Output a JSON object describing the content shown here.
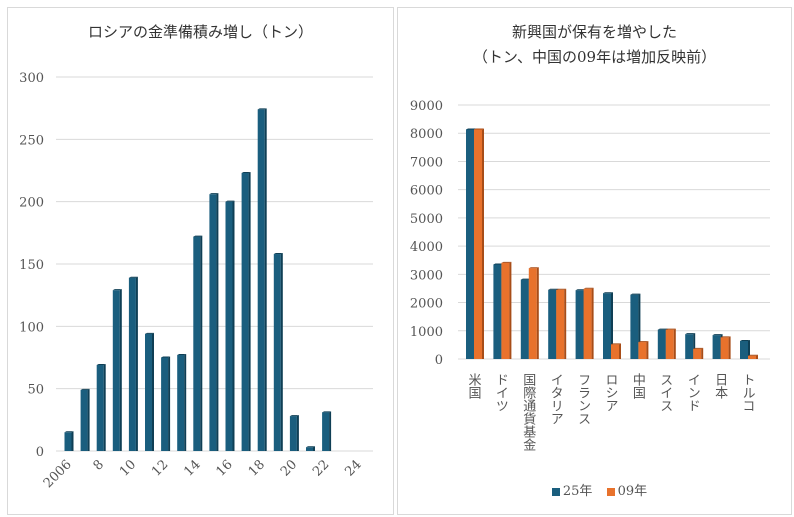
{
  "chart_data": [
    {
      "type": "bar",
      "title": "ロシアの金準備積み増し（トン）",
      "x": [
        2006,
        2007,
        2008,
        2009,
        2010,
        2011,
        2012,
        2013,
        2014,
        2015,
        2016,
        2017,
        2018,
        2019,
        2020,
        2021,
        2022
      ],
      "values": [
        15,
        49,
        69,
        129,
        139,
        94,
        75,
        77,
        172,
        206,
        200,
        223,
        274,
        158,
        28,
        3,
        31
      ],
      "xtick_labels": [
        "2006",
        "8",
        "10",
        "12",
        "14",
        "16",
        "18",
        "20",
        "22",
        "24"
      ],
      "xticks": [
        2006,
        2008,
        2010,
        2012,
        2014,
        2016,
        2018,
        2020,
        2022,
        2024
      ],
      "yticks": [
        0,
        50,
        100,
        150,
        200,
        250,
        300
      ],
      "ylim": [
        0,
        300
      ],
      "grid": true,
      "color": "#1a5e7e"
    },
    {
      "type": "bar",
      "title_lines": [
        "新興国が保有を増やした",
        "（トン、中国の09年は増加反映前）"
      ],
      "categories": [
        "米国",
        "ドイツ",
        "国際通貨基金",
        "イタリア",
        "フランス",
        "ロシア",
        "中国",
        "スイス",
        "インド",
        "日本",
        "トルコ"
      ],
      "series": [
        {
          "name": "25年",
          "color": "#1a5e7e",
          "values": [
            8133,
            3350,
            2814,
            2452,
            2437,
            2330,
            2280,
            1040,
            880,
            846,
            640
          ]
        },
        {
          "name": "09年",
          "color": "#e8722c",
          "values": [
            8133,
            3408,
            3217,
            2452,
            2487,
            520,
            600,
            1040,
            358,
            765,
            116
          ]
        }
      ],
      "yticks": [
        0,
        1000,
        2000,
        3000,
        4000,
        5000,
        6000,
        7000,
        8000,
        9000
      ],
      "ylim": [
        0,
        9000
      ],
      "grid": true,
      "legend": "bottom"
    }
  ]
}
